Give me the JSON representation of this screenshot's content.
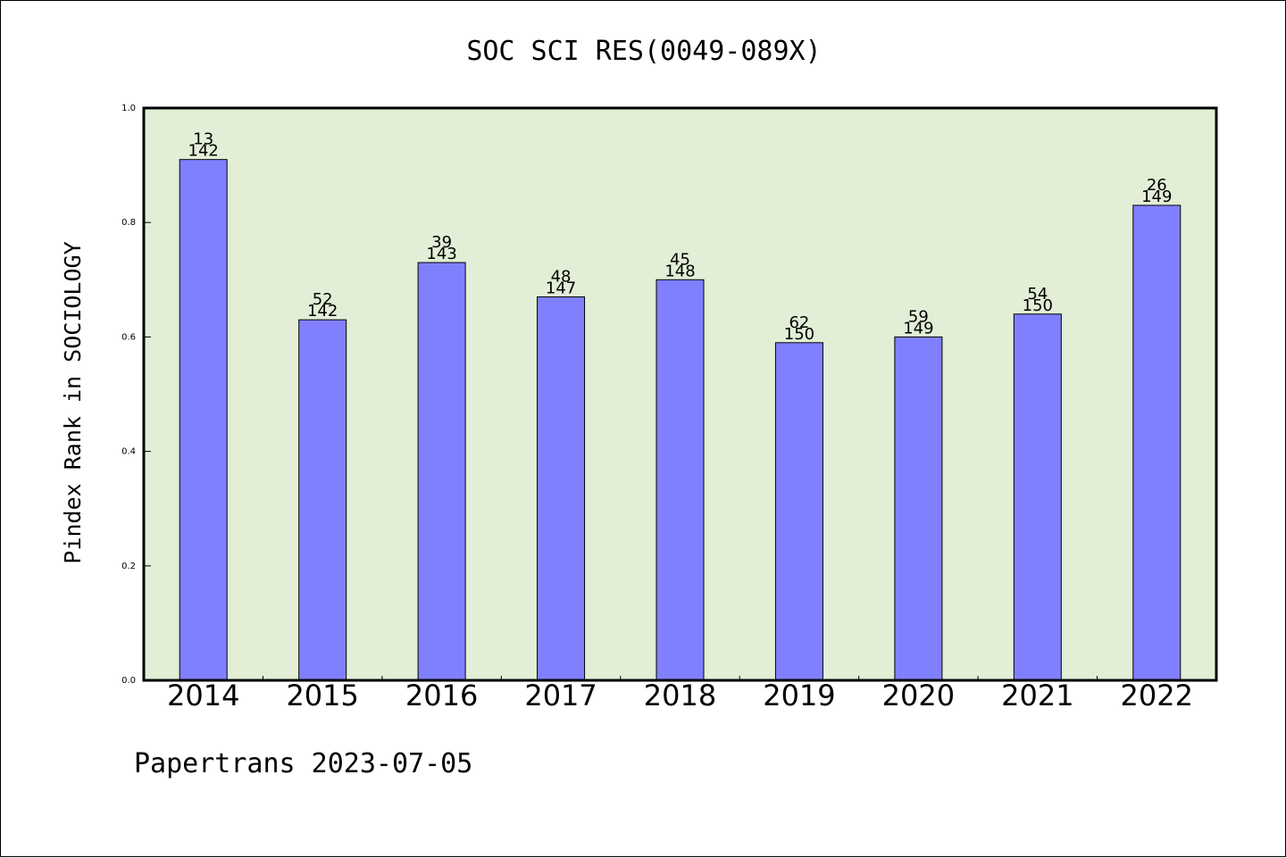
{
  "chart_data": {
    "type": "bar",
    "title": "SOC SCI RES(0049-089X)",
    "ylabel": "Pindex Rank in SOCIOLOGY",
    "xlabel": "",
    "ylim": [
      0,
      1.0
    ],
    "yticks": [
      "0.0",
      "0.2",
      "0.4",
      "0.6",
      "0.8",
      "1.0"
    ],
    "categories": [
      "2014",
      "2015",
      "2016",
      "2017",
      "2018",
      "2019",
      "2020",
      "2021",
      "2022"
    ],
    "values": [
      0.91,
      0.63,
      0.73,
      0.67,
      0.7,
      0.59,
      0.6,
      0.64,
      0.83
    ],
    "rank": [
      "13",
      "52",
      "39",
      "48",
      "45",
      "62",
      "59",
      "54",
      "26"
    ],
    "total": [
      "142",
      "142",
      "143",
      "147",
      "148",
      "150",
      "149",
      "150",
      "149"
    ],
    "grid": false,
    "bar_color": "#8080ff",
    "plot_background": "#e2efd6"
  },
  "footer": "Papertrans 2023-07-05"
}
